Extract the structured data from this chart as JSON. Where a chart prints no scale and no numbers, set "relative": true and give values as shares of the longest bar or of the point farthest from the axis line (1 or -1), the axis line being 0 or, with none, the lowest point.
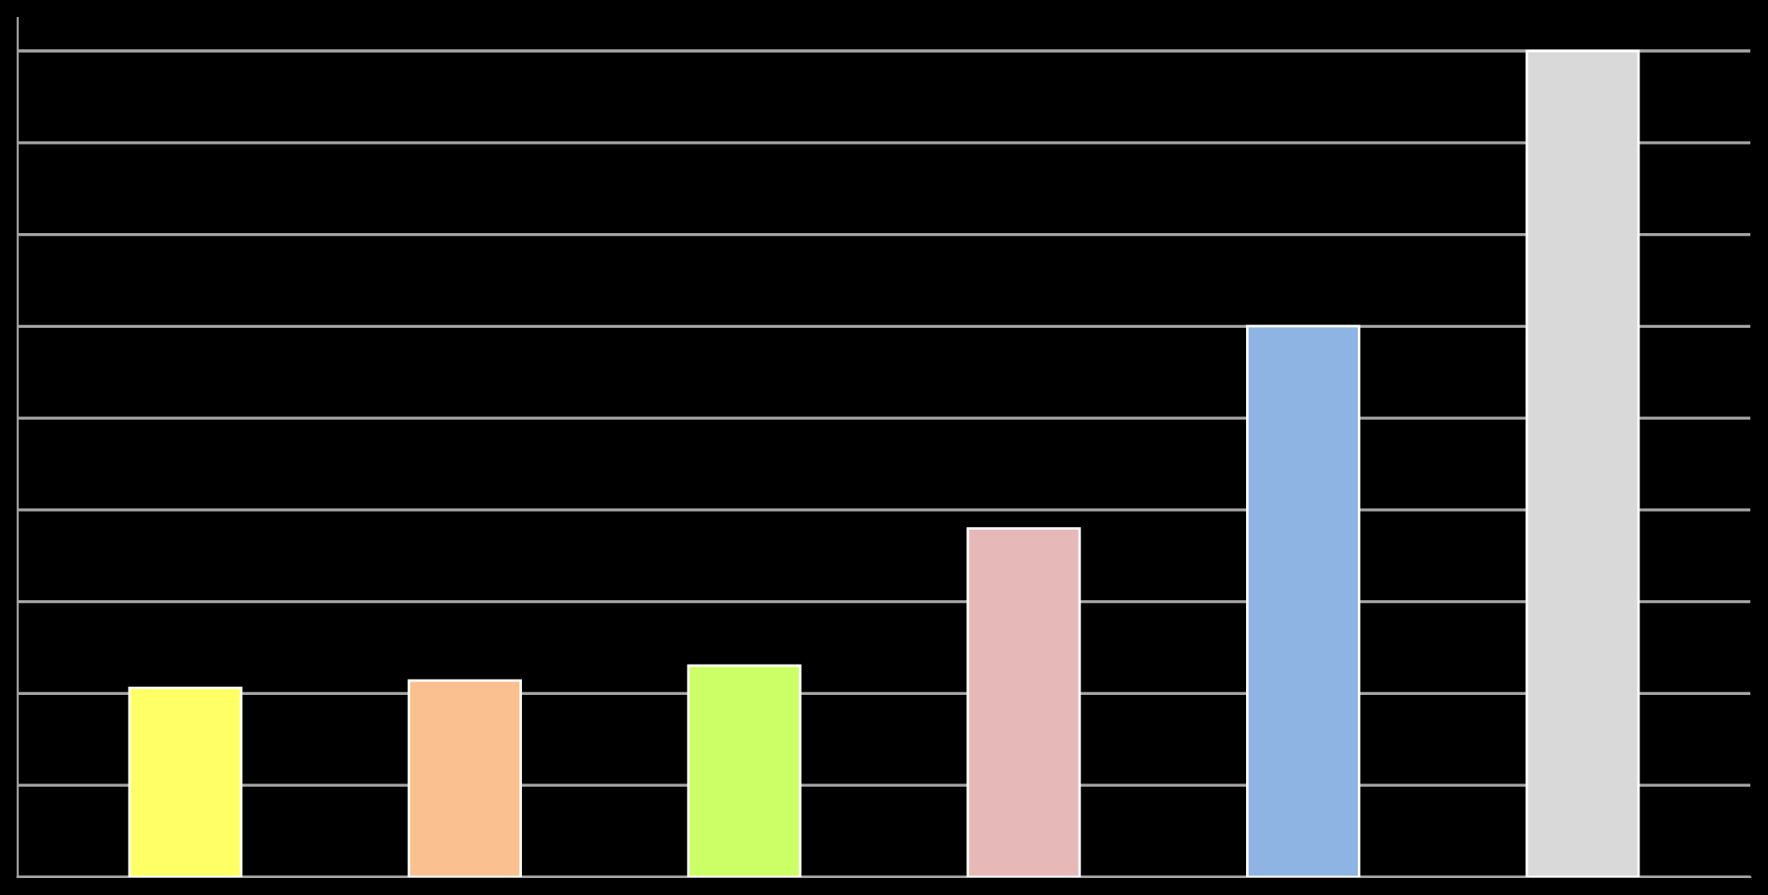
{
  "chart_data": {
    "type": "bar",
    "relative": true,
    "grid": "y",
    "categories": [
      null,
      null,
      null,
      null,
      null,
      null
    ],
    "values": [
      0.229,
      0.238,
      0.256,
      0.422,
      0.667,
      1.0
    ],
    "colors": [
      "#ffff66",
      "#fac090",
      "#ccff66",
      "#e6b9b8",
      "#8eb4e3",
      "#d9d9d9"
    ]
  }
}
